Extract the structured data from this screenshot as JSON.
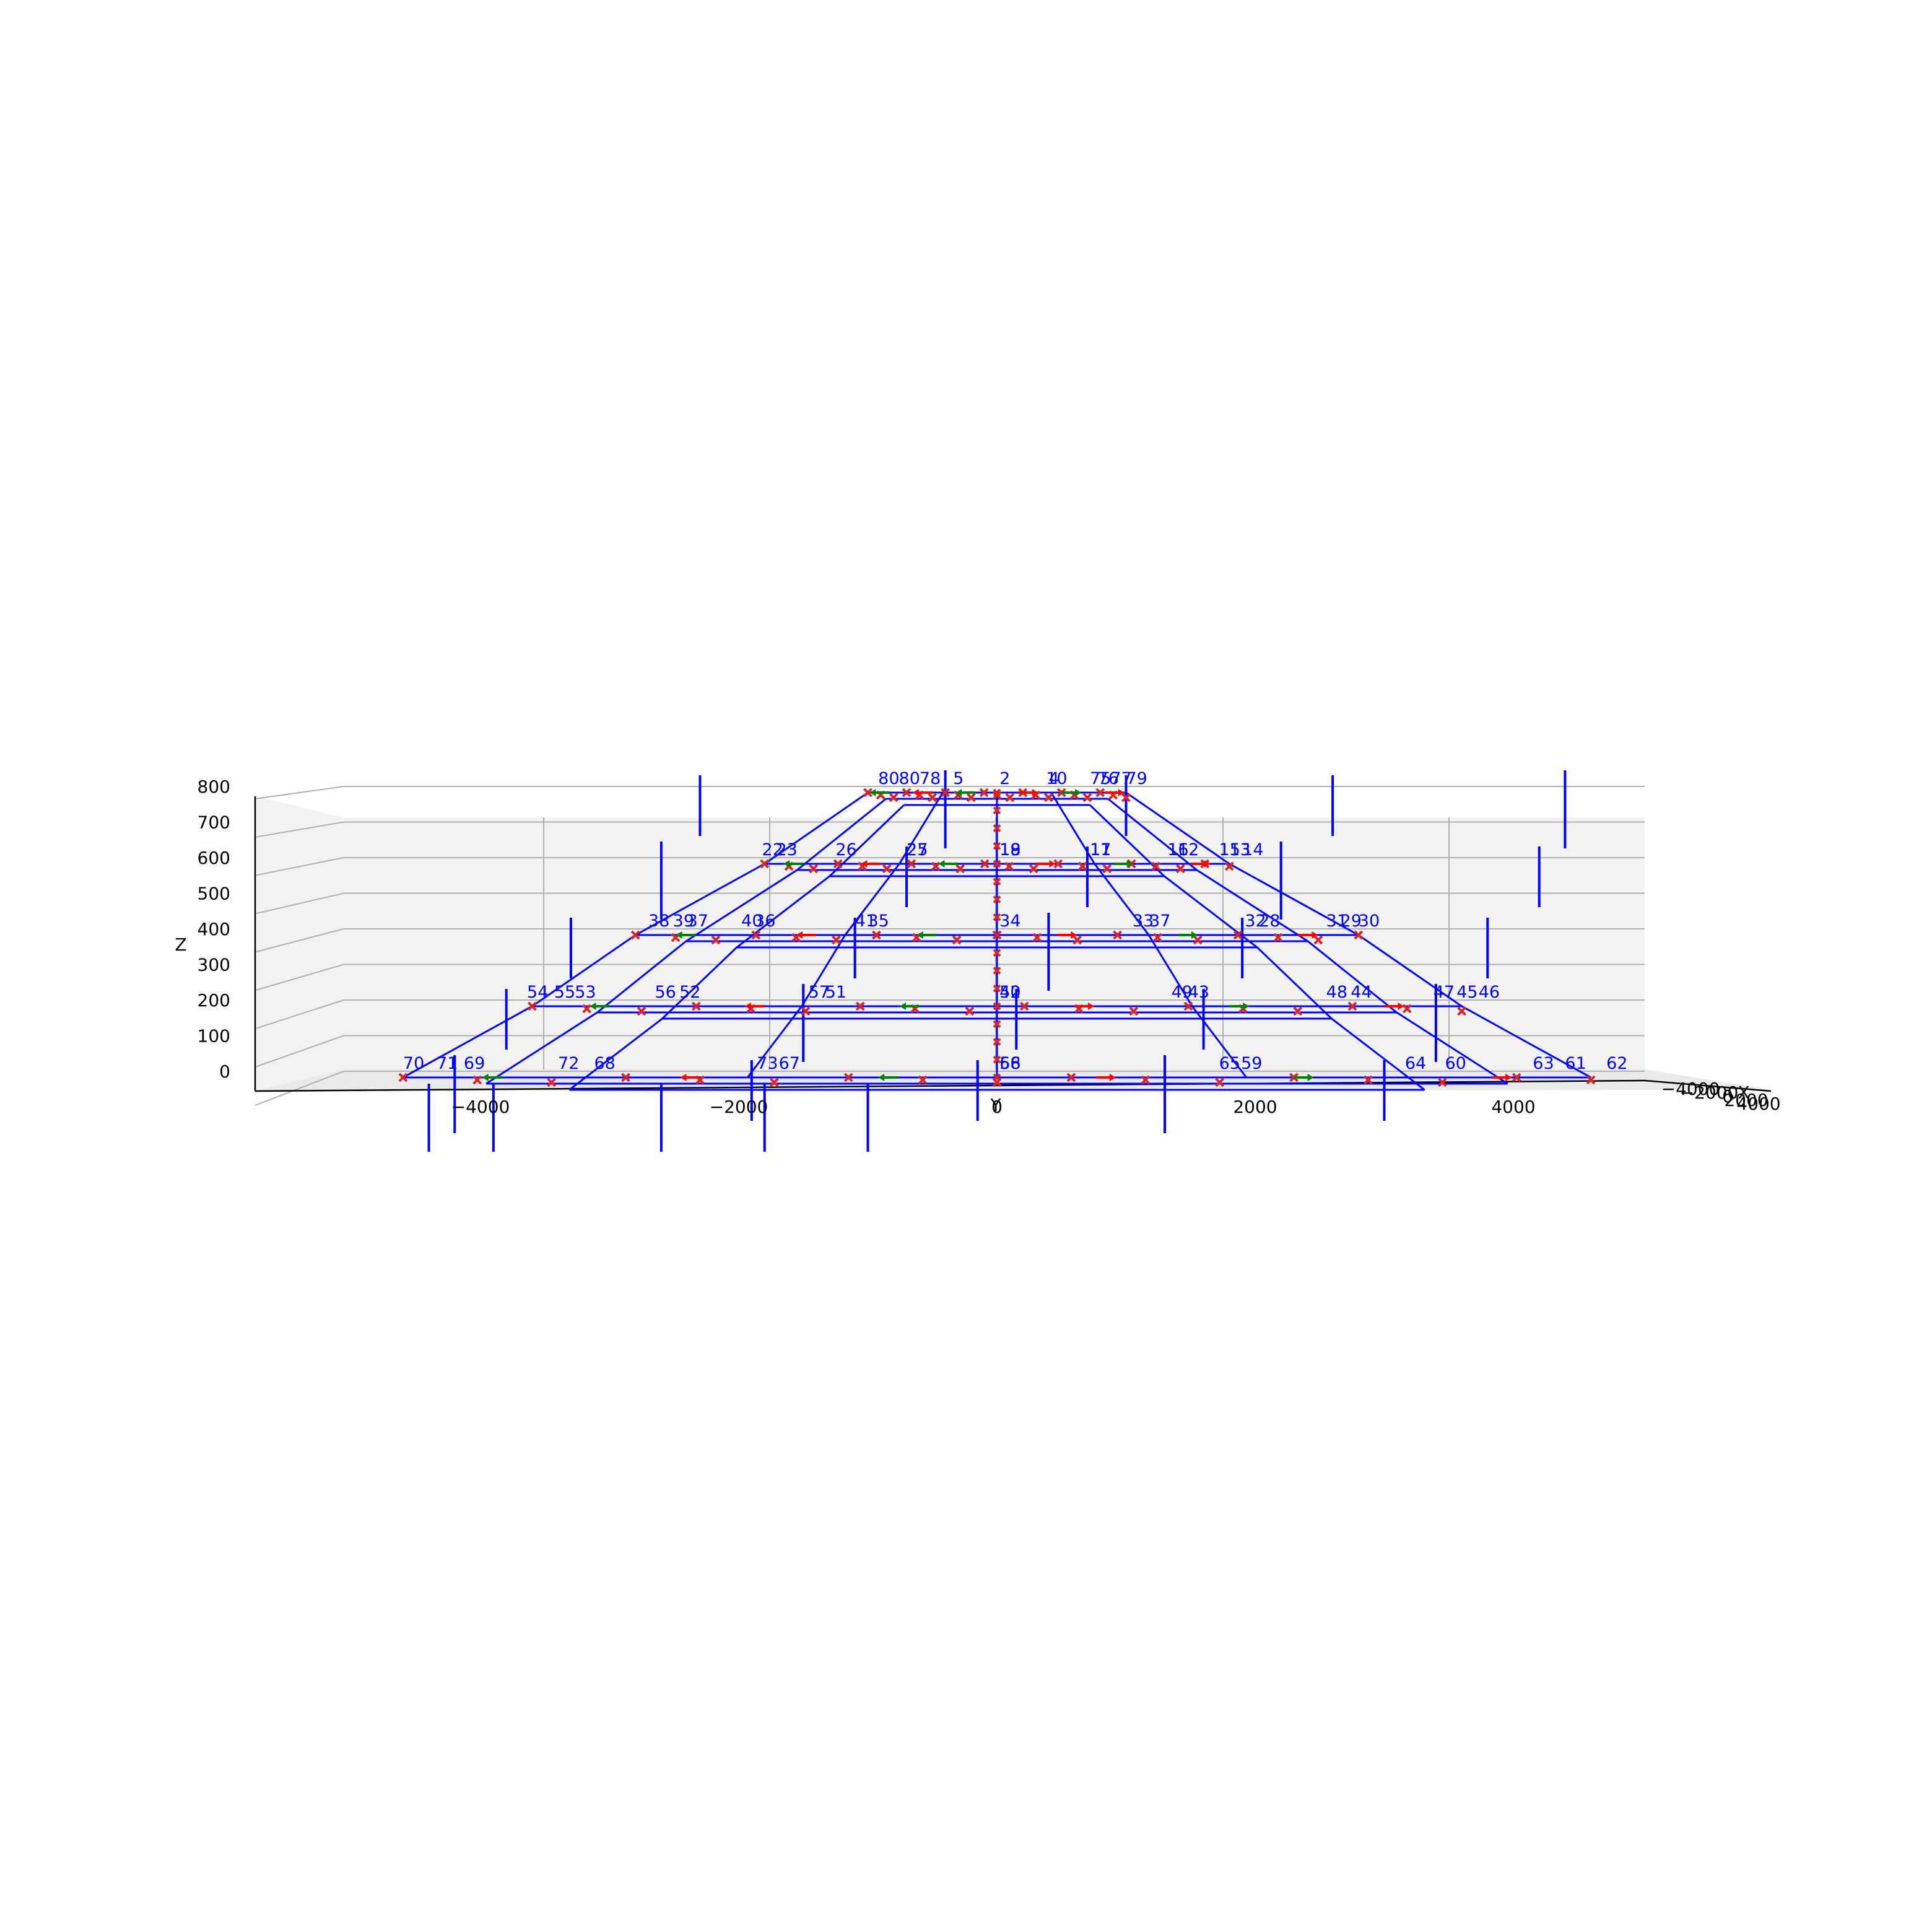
{
  "figure": {
    "background": "#ffffff",
    "pane_color": "#f2f2f2",
    "grid_color": "#b0b0b0",
    "member_color": "#0000ff",
    "load_color": "#0000ff",
    "node_marker_color": "#d62728",
    "reaction_color_primary": "#ff0000",
    "reaction_color_secondary": "#008000"
  },
  "axes": {
    "x_label": "X",
    "y_label": "Y",
    "z_label": "Z",
    "x_ticks": [
      "−4000",
      "−2000",
      "0",
      "2000",
      "4000"
    ],
    "z_ticks": [
      "0",
      "100",
      "200",
      "300",
      "400",
      "500",
      "600",
      "700",
      "800"
    ],
    "y_ticks": [
      "−4000",
      "−2000",
      "0",
      "2000",
      "4000"
    ]
  },
  "structure": {
    "levels_z": [
      0,
      200,
      400,
      600,
      800
    ],
    "level_half_width_x": [
      4600,
      3600,
      2800,
      1800,
      1000
    ],
    "member_sets": [
      "outer",
      "middle",
      "inner"
    ]
  },
  "node_labels": [
    {
      "text": "80",
      "x": -920,
      "z": 800
    },
    {
      "text": "80",
      "x": -760,
      "z": 800
    },
    {
      "text": "78",
      "x": -600,
      "z": 800
    },
    {
      "text": "5",
      "x": -340,
      "z": 800
    },
    {
      "text": "2",
      "x": 20,
      "z": 800
    },
    {
      "text": "4",
      "x": 400,
      "z": 800
    },
    {
      "text": "10",
      "x": 380,
      "z": 800
    },
    {
      "text": "75",
      "x": 720,
      "z": 800
    },
    {
      "text": "76",
      "x": 780,
      "z": 800
    },
    {
      "text": "77",
      "x": 880,
      "z": 800
    },
    {
      "text": "79",
      "x": 1000,
      "z": 800
    },
    {
      "text": "22",
      "x": -1820,
      "z": 600
    },
    {
      "text": "23",
      "x": -1710,
      "z": 600
    },
    {
      "text": "26",
      "x": -1250,
      "z": 600
    },
    {
      "text": "27",
      "x": -700,
      "z": 600
    },
    {
      "text": "25",
      "x": -700,
      "z": 600
    },
    {
      "text": "19",
      "x": 20,
      "z": 600
    },
    {
      "text": "18",
      "x": 20,
      "z": 600
    },
    {
      "text": "11",
      "x": 720,
      "z": 600
    },
    {
      "text": "17",
      "x": 720,
      "z": 600
    },
    {
      "text": "16",
      "x": 1320,
      "z": 600
    },
    {
      "text": "12",
      "x": 1400,
      "z": 600
    },
    {
      "text": "15",
      "x": 1720,
      "z": 600
    },
    {
      "text": "13",
      "x": 1800,
      "z": 600
    },
    {
      "text": "14",
      "x": 1900,
      "z": 600
    },
    {
      "text": "38",
      "x": -2700,
      "z": 400
    },
    {
      "text": "39",
      "x": -2510,
      "z": 400
    },
    {
      "text": "37",
      "x": -2400,
      "z": 400
    },
    {
      "text": "40",
      "x": -1980,
      "z": 400
    },
    {
      "text": "36",
      "x": -1880,
      "z": 400
    },
    {
      "text": "41",
      "x": -1100,
      "z": 400
    },
    {
      "text": "35",
      "x": -1000,
      "z": 400
    },
    {
      "text": "34",
      "x": 20,
      "z": 400
    },
    {
      "text": "33",
      "x": 1050,
      "z": 400
    },
    {
      "text": "37",
      "x": 1180,
      "z": 400
    },
    {
      "text": "32",
      "x": 1920,
      "z": 400
    },
    {
      "text": "28",
      "x": 2030,
      "z": 400
    },
    {
      "text": "31",
      "x": 2550,
      "z": 400
    },
    {
      "text": "29",
      "x": 2660,
      "z": 400
    },
    {
      "text": "30",
      "x": 2800,
      "z": 400
    },
    {
      "text": "54",
      "x": -3640,
      "z": 200
    },
    {
      "text": "55",
      "x": -3430,
      "z": 200
    },
    {
      "text": "53",
      "x": -3270,
      "z": 200
    },
    {
      "text": "56",
      "x": -2650,
      "z": 200
    },
    {
      "text": "52",
      "x": -2460,
      "z": 200
    },
    {
      "text": "57",
      "x": -1460,
      "z": 200
    },
    {
      "text": "51",
      "x": -1330,
      "z": 200
    },
    {
      "text": "50",
      "x": 20,
      "z": 200
    },
    {
      "text": "42",
      "x": 20,
      "z": 200
    },
    {
      "text": "49",
      "x": 1350,
      "z": 200
    },
    {
      "text": "43",
      "x": 1480,
      "z": 200
    },
    {
      "text": "48",
      "x": 2550,
      "z": 200
    },
    {
      "text": "44",
      "x": 2740,
      "z": 200
    },
    {
      "text": "47",
      "x": 3380,
      "z": 200
    },
    {
      "text": "45",
      "x": 3560,
      "z": 200
    },
    {
      "text": "46",
      "x": 3730,
      "z": 200
    },
    {
      "text": "70",
      "x": -4600,
      "z": 0
    },
    {
      "text": "71",
      "x": -4340,
      "z": 0
    },
    {
      "text": "69",
      "x": -4130,
      "z": 0
    },
    {
      "text": "72",
      "x": -3400,
      "z": 0
    },
    {
      "text": "68",
      "x": -3120,
      "z": 0
    },
    {
      "text": "73",
      "x": -1860,
      "z": 0
    },
    {
      "text": "67",
      "x": -1690,
      "z": 0
    },
    {
      "text": "66",
      "x": 20,
      "z": 0
    },
    {
      "text": "58",
      "x": 20,
      "z": 0
    },
    {
      "text": "65",
      "x": 1720,
      "z": 0
    },
    {
      "text": "59",
      "x": 1890,
      "z": 0
    },
    {
      "text": "64",
      "x": 3160,
      "z": 0
    },
    {
      "text": "60",
      "x": 3470,
      "z": 0
    },
    {
      "text": "63",
      "x": 4150,
      "z": 0
    },
    {
      "text": "61",
      "x": 4400,
      "z": 0
    },
    {
      "text": "62",
      "x": 4720,
      "z": 0
    }
  ]
}
